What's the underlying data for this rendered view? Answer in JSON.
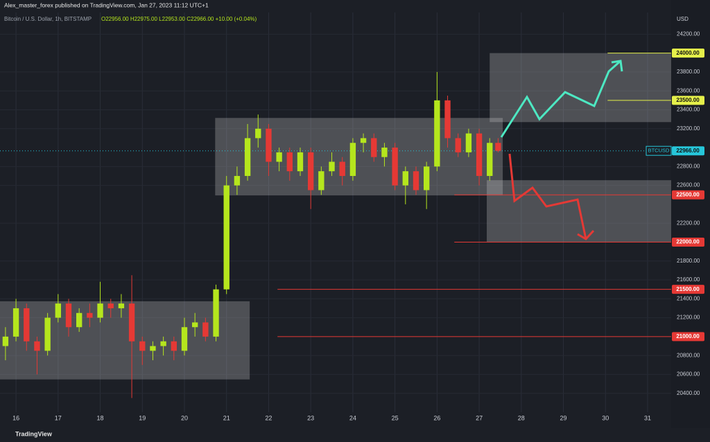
{
  "chart_data": {
    "type": "candlestick",
    "header": "Alex_master_forex published on TradingView.com, Jan 27, 2023 11:12 UTC+1",
    "symbol": "Bitcoin / U.S. Dollar, 1h, BITSTAMP",
    "ohlc_text": "O22956.00 H22975.00 L22953.00 C22966.00 +10.00 (+0.04%)",
    "currency": "USD",
    "footer": "TradingView",
    "up_color": "#b5e61d",
    "down_color": "#e53935",
    "x": [
      15.75,
      16,
      16.25,
      16.5,
      16.75,
      17,
      17.25,
      17.5,
      17.75,
      18,
      18.25,
      18.5,
      18.75,
      19,
      19.25,
      19.5,
      19.75,
      20,
      20.25,
      20.5,
      20.75,
      21,
      21.25,
      21.5,
      21.75,
      22,
      22.25,
      22.5,
      22.75,
      23,
      23.25,
      23.5,
      23.75,
      24,
      24.25,
      24.5,
      24.75,
      25,
      25.25,
      25.5,
      25.75,
      26,
      26.25,
      26.5,
      26.75,
      27,
      27.25,
      27.45
    ],
    "open": [
      20900,
      21000,
      21300,
      20950,
      20850,
      21200,
      21350,
      21100,
      21250,
      21200,
      21350,
      21300,
      21350,
      20950,
      20850,
      20900,
      20950,
      20850,
      21100,
      21150,
      21000,
      21500,
      22600,
      22700,
      23100,
      23200,
      22850,
      22950,
      22750,
      22950,
      22550,
      22750,
      22850,
      22700,
      23050,
      23100,
      22900,
      23000,
      22600,
      22750,
      22550,
      22800,
      23500,
      23100,
      22950,
      23150,
      22700,
      23050
    ],
    "high": [
      21100,
      21400,
      21350,
      21000,
      21250,
      21450,
      21400,
      21300,
      21350,
      21580,
      21400,
      21450,
      21650,
      21000,
      20950,
      21000,
      21000,
      21200,
      21250,
      21200,
      21550,
      22700,
      22800,
      23250,
      23350,
      23250,
      23000,
      23000,
      23000,
      23000,
      22800,
      22950,
      22900,
      23100,
      23150,
      23150,
      23050,
      23050,
      22800,
      22800,
      22850,
      23800,
      23550,
      23150,
      23200,
      23200,
      23100,
      23100
    ],
    "low": [
      20750,
      20950,
      20850,
      20600,
      20800,
      21150,
      21000,
      21050,
      21100,
      21150,
      21200,
      21200,
      20350,
      20700,
      20750,
      20800,
      20750,
      20800,
      21000,
      20950,
      20950,
      21450,
      22500,
      22650,
      23000,
      22700,
      22750,
      22650,
      22700,
      22350,
      22500,
      22700,
      22600,
      22650,
      22950,
      22850,
      22800,
      22550,
      22400,
      22500,
      22350,
      22750,
      23000,
      22900,
      22900,
      22600,
      22650,
      22950
    ],
    "close": [
      21000,
      21300,
      20950,
      20850,
      21200,
      21350,
      21100,
      21250,
      21200,
      21350,
      21300,
      21350,
      20950,
      20850,
      20900,
      20950,
      20850,
      21100,
      21150,
      21000,
      21500,
      22600,
      22700,
      23100,
      23200,
      22850,
      22950,
      22750,
      22950,
      22550,
      22750,
      22850,
      22700,
      23050,
      23100,
      22900,
      23000,
      22600,
      22750,
      22550,
      22800,
      23500,
      23100,
      22950,
      23150,
      22700,
      23050,
      22966
    ],
    "xlim": [
      15.62,
      31.56
    ],
    "xticks": [
      16,
      17,
      18,
      19,
      20,
      21,
      22,
      23,
      24,
      25,
      26,
      27,
      28,
      29,
      30,
      31
    ],
    "ylim": [
      20200,
      24430
    ],
    "yticks": [
      {
        "value": 24200,
        "label": "24200.00"
      },
      {
        "value": 23800,
        "label": "23800.00"
      },
      {
        "value": 23600,
        "label": "23600.00"
      },
      {
        "value": 23400,
        "label": "23400.00"
      },
      {
        "value": 23200,
        "label": "23200.00"
      },
      {
        "value": 22800,
        "label": "22800.00"
      },
      {
        "value": 22600,
        "label": "22600.00"
      },
      {
        "value": 22200,
        "label": "22200.00"
      },
      {
        "value": 21800,
        "label": "21800.00"
      },
      {
        "value": 21600,
        "label": "21600.00"
      },
      {
        "value": 21400,
        "label": "21400.00"
      },
      {
        "value": 21200,
        "label": "21200.00"
      },
      {
        "value": 20800,
        "label": "20800.00"
      },
      {
        "value": 20600,
        "label": "20600.00"
      },
      {
        "value": 20400,
        "label": "20400.00"
      }
    ],
    "grid": true,
    "levels": [
      {
        "value": 24000,
        "label": "24000.00",
        "color": "#e5f04a",
        "x_from": 30.05
      },
      {
        "value": 23500,
        "label": "23500.00",
        "color": "#e5f04a",
        "x_from": 30.05
      },
      {
        "value": 22500,
        "label": "22500.00",
        "color": "#e53935",
        "x_from": 26.41
      },
      {
        "value": 22000,
        "label": "22000.00",
        "color": "#e53935",
        "x_from": 26.41
      },
      {
        "value": 21500,
        "label": "21500.00",
        "color": "#e53935",
        "x_from": 22.21
      },
      {
        "value": 21000,
        "label": "21000.00",
        "color": "#e53935",
        "x_from": 22.21
      }
    ],
    "zones": [
      {
        "x": [
          15.62,
          21.55
        ],
        "y": [
          21374,
          20547
        ]
      },
      {
        "x": [
          20.73,
          27.56
        ],
        "y": [
          23314,
          22494
        ]
      },
      {
        "x": [
          27.25,
          31.56
        ],
        "y": [
          24000,
          23270
        ]
      },
      {
        "x": [
          27.18,
          31.56
        ],
        "y": [
          22655,
          22000
        ]
      }
    ],
    "current": {
      "name": "BTCUSD",
      "value": 22966,
      "label": "22966.00",
      "color": "#26c6da"
    }
  }
}
